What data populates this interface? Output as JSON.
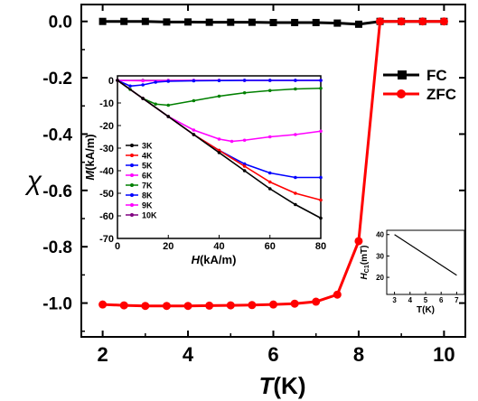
{
  "chart_data": [
    {
      "id": "main",
      "type": "line",
      "xlabel_italic": "T",
      "xlabel_rest": "(K)",
      "ylabel": "χ",
      "xlim": [
        1.5,
        10.5
      ],
      "ylim": [
        -1.12,
        0.06
      ],
      "xticks": [
        2,
        4,
        6,
        8,
        10
      ],
      "yticks": [
        0.0,
        -0.2,
        -0.4,
        -0.6,
        -0.8,
        -1.0
      ],
      "ytick_labels": [
        "0.0",
        "-0.2",
        "-0.4",
        "-0.6",
        "-0.8",
        "-1.0"
      ],
      "legend_position": "upper-right",
      "series": [
        {
          "name": "FC",
          "color": "#000000",
          "marker": "square",
          "x": [
            2.0,
            2.5,
            3.0,
            3.5,
            4.0,
            4.5,
            5.0,
            5.5,
            6.0,
            6.5,
            7.0,
            7.5,
            8.0,
            8.5,
            9.0,
            9.5,
            10.0
          ],
          "y": [
            0.0,
            0.0,
            0.0,
            -0.002,
            -0.002,
            -0.003,
            -0.003,
            -0.003,
            -0.004,
            -0.004,
            -0.004,
            -0.006,
            -0.01,
            0.0,
            0.0,
            0.0,
            0.0
          ]
        },
        {
          "name": "ZFC",
          "color": "#ff0000",
          "marker": "circle",
          "x": [
            2.0,
            2.5,
            3.0,
            3.5,
            4.0,
            4.5,
            5.0,
            5.5,
            6.0,
            6.5,
            7.0,
            7.5,
            8.0,
            8.5,
            9.0,
            9.5,
            10.0
          ],
          "y": [
            -1.005,
            -1.008,
            -1.01,
            -1.01,
            -1.01,
            -1.009,
            -1.008,
            -1.007,
            -1.005,
            -1.002,
            -0.995,
            -0.97,
            -0.78,
            0.0,
            0.0,
            0.0,
            0.0
          ]
        }
      ]
    },
    {
      "id": "inset_mh",
      "type": "line",
      "xlabel_italic": "H",
      "xlabel_rest": "(kA/m)",
      "ylabel_italic": "M",
      "ylabel_rest": "(kA/m)",
      "xlim": [
        0,
        80
      ],
      "ylim": [
        -70,
        2
      ],
      "xticks": [
        0,
        20,
        40,
        60,
        80
      ],
      "yticks": [
        0,
        -10,
        -20,
        -30,
        -40,
        -50,
        -60,
        -70
      ],
      "legend_position": "left",
      "series": [
        {
          "name": "3K",
          "color": "#000000",
          "x": [
            0,
            10,
            20,
            30,
            40,
            50,
            60,
            70,
            80
          ],
          "y": [
            0,
            -8,
            -16,
            -24,
            -32,
            -40,
            -48,
            -55,
            -61
          ]
        },
        {
          "name": "4K",
          "color": "#ff0000",
          "x": [
            0,
            10,
            20,
            30,
            40,
            50,
            60,
            70,
            80
          ],
          "y": [
            0,
            -8,
            -16,
            -24,
            -31,
            -38,
            -45,
            -50,
            -53
          ]
        },
        {
          "name": "5K",
          "color": "#0000ff",
          "x": [
            0,
            10,
            20,
            30,
            40,
            50,
            60,
            70,
            80
          ],
          "y": [
            0,
            -8,
            -16,
            -24,
            -31,
            -37,
            -41,
            -43,
            -43
          ]
        },
        {
          "name": "6K",
          "color": "#ff00ff",
          "x": [
            0,
            10,
            20,
            30,
            40,
            45,
            50,
            60,
            70,
            80
          ],
          "y": [
            0,
            -8,
            -16,
            -22,
            -26,
            -27,
            -26.5,
            -25,
            -24,
            -22.5
          ]
        },
        {
          "name": "7K",
          "color": "#008000",
          "x": [
            0,
            5,
            10,
            15,
            20,
            30,
            40,
            50,
            60,
            70,
            80
          ],
          "y": [
            0,
            -4,
            -8,
            -10.5,
            -11,
            -9,
            -7,
            -5.5,
            -4.5,
            -3.8,
            -3.5
          ]
        },
        {
          "name": "8K",
          "color": "#0000ff",
          "x": [
            0,
            5,
            10,
            15,
            20,
            30,
            40,
            50,
            60,
            70,
            80
          ],
          "y": [
            0,
            -2.5,
            -2,
            -0.8,
            -0.4,
            -0.2,
            -0.1,
            0,
            0,
            0,
            0
          ]
        },
        {
          "name": "9K",
          "color": "#ff00ff",
          "x": [
            0,
            10,
            20,
            30,
            40,
            50,
            60,
            70,
            80
          ],
          "y": [
            0,
            -0.2,
            -0.1,
            0,
            0,
            0,
            0,
            0,
            0
          ]
        },
        {
          "name": "10K",
          "color": "#800080",
          "x": [
            0,
            10,
            20,
            30,
            40,
            50,
            60,
            70,
            80
          ],
          "y": [
            0,
            0,
            0,
            0,
            0,
            0,
            0,
            0,
            0
          ]
        }
      ]
    },
    {
      "id": "inset_hc",
      "type": "line",
      "xlabel": "T(K)",
      "ylabel_italic": "H",
      "ylabel_sub": "C1",
      "ylabel_rest": "(mT)",
      "xlim": [
        2.5,
        7.5
      ],
      "ylim": [
        12,
        42
      ],
      "xticks": [
        3,
        4,
        5,
        6,
        7
      ],
      "yticks": [
        20,
        30,
        40
      ],
      "series": [
        {
          "name": "Hc1",
          "color": "#000000",
          "x": [
            3,
            7
          ],
          "y": [
            40,
            21
          ]
        }
      ]
    }
  ]
}
